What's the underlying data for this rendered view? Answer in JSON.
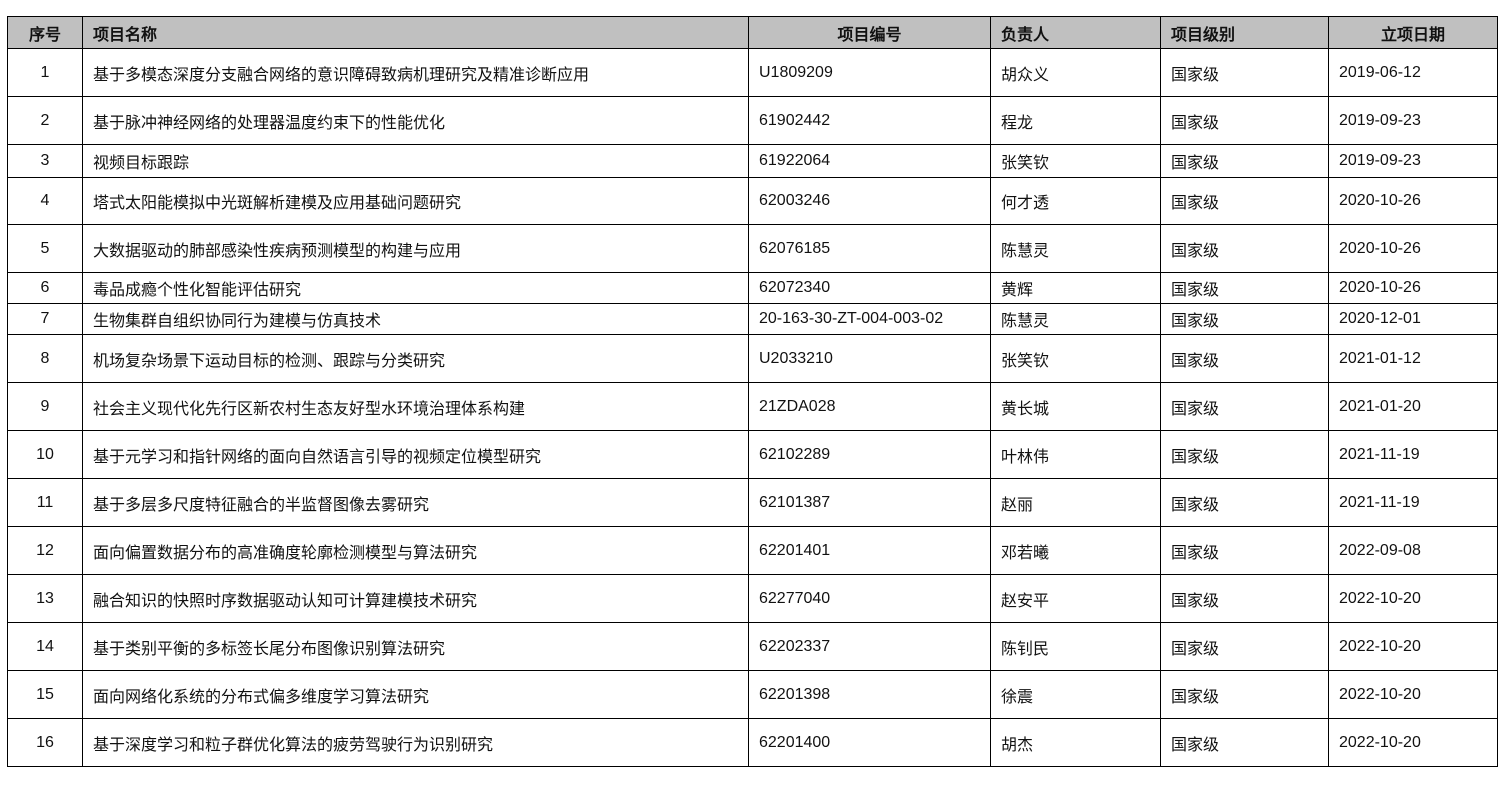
{
  "table": {
    "headers": [
      "序号",
      "项目名称",
      "项目编号",
      "负责人",
      "项目级别",
      "立项日期"
    ],
    "rows": [
      [
        "1",
        "基于多模态深度分支融合网络的意识障碍致病机理研究及精准诊断应用",
        "U1809209",
        "胡众义",
        "国家级",
        "2019-06-12"
      ],
      [
        "2",
        "基于脉冲神经网络的处理器温度约束下的性能优化",
        "61902442",
        "程龙",
        "国家级",
        "2019-09-23"
      ],
      [
        "3",
        "视频目标跟踪",
        "61922064",
        "张笑钦",
        "国家级",
        "2019-09-23"
      ],
      [
        "4",
        "塔式太阳能模拟中光斑解析建模及应用基础问题研究",
        "62003246",
        "何才透",
        "国家级",
        "2020-10-26"
      ],
      [
        "5",
        "大数据驱动的肺部感染性疾病预测模型的构建与应用",
        "62076185",
        "陈慧灵",
        "国家级",
        "2020-10-26"
      ],
      [
        "6",
        "毒品成瘾个性化智能评估研究",
        "62072340",
        "黄辉",
        "国家级",
        "2020-10-26"
      ],
      [
        "7",
        "生物集群自组织协同行为建模与仿真技术",
        "20-163-30-ZT-004-003-02",
        "陈慧灵",
        "国家级",
        "2020-12-01"
      ],
      [
        "8",
        "机场复杂场景下运动目标的检测、跟踪与分类研究",
        "U2033210",
        "张笑钦",
        "国家级",
        "2021-01-12"
      ],
      [
        "9",
        "社会主义现代化先行区新农村生态友好型水环境治理体系构建",
        "21ZDA028",
        "黄长城",
        "国家级",
        "2021-01-20"
      ],
      [
        "10",
        "基于元学习和指针网络的面向自然语言引导的视频定位模型研究",
        "62102289",
        "叶林伟",
        "国家级",
        "2021-11-19"
      ],
      [
        "11",
        "基于多层多尺度特征融合的半监督图像去雾研究",
        "62101387",
        "赵丽",
        "国家级",
        "2021-11-19"
      ],
      [
        "12",
        "面向偏置数据分布的高准确度轮廓检测模型与算法研究",
        "62201401",
        "邓若曦",
        "国家级",
        "2022-09-08"
      ],
      [
        "13",
        "融合知识的快照时序数据驱动认知可计算建模技术研究",
        "62277040",
        "赵安平",
        "国家级",
        "2022-10-20"
      ],
      [
        "14",
        "基于类别平衡的多标签长尾分布图像识别算法研究",
        "62202337",
        "陈钊民",
        "国家级",
        "2022-10-20"
      ],
      [
        "15",
        "面向网络化系统的分布式偏多维度学习算法研究",
        "62201398",
        "徐震",
        "国家级",
        "2022-10-20"
      ],
      [
        "16",
        "基于深度学习和粒子群优化算法的疲劳驾驶行为识别研究",
        "62201400",
        "胡杰",
        "国家级",
        "2022-10-20"
      ]
    ]
  }
}
